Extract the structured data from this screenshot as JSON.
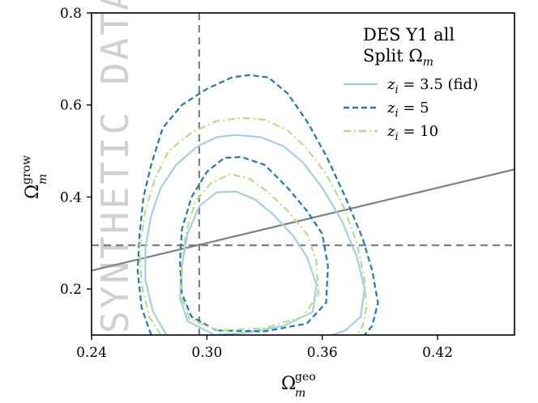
{
  "chart_data": {
    "type": "contour",
    "xlabel": "Ω",
    "xlabel_sub": "m",
    "xlabel_sup": "geo",
    "ylabel": "Ω",
    "ylabel_sub": "m",
    "ylabel_sup": "grow",
    "xlim": [
      0.24,
      0.46
    ],
    "ylim": [
      0.1,
      0.8
    ],
    "xticks": [
      0.24,
      0.3,
      0.36,
      0.42
    ],
    "xtick_labels": [
      "0.24",
      "0.30",
      "0.36",
      "0.42"
    ],
    "yticks": [
      0.2,
      0.4,
      0.6,
      0.8
    ],
    "ytick_labels": [
      "0.2",
      "0.4",
      "0.6",
      "0.8"
    ],
    "watermark": "SYNTHETIC DATA",
    "legend": {
      "title_line1": "DES Y1 all",
      "title_line2": "Split Ω",
      "title_line2_sub": "m",
      "placement": "top-right"
    },
    "reference_lines": [
      {
        "type": "vertical",
        "x": 0.296,
        "style": "dashed",
        "color": "#808080"
      },
      {
        "type": "horizontal",
        "y": 0.295,
        "style": "dashed",
        "color": "#808080"
      },
      {
        "type": "diagonal",
        "x0": 0.24,
        "y0": 0.24,
        "x1": 0.46,
        "y1": 0.46,
        "style": "solid",
        "color": "#808080"
      }
    ],
    "series": [
      {
        "name": "z_i = 3.5 (fid)",
        "label_var": "z",
        "label_sub": "i",
        "label_rest": " = 3.5 (fid)",
        "color": "#a6cee3",
        "style": "solid",
        "contours": [
          [
            [
              0.304,
              0.1
            ],
            [
              0.29,
              0.13
            ],
            [
              0.286,
              0.18
            ],
            [
              0.287,
              0.25
            ],
            [
              0.29,
              0.32
            ],
            [
              0.296,
              0.38
            ],
            [
              0.305,
              0.41
            ],
            [
              0.315,
              0.412
            ],
            [
              0.325,
              0.395
            ],
            [
              0.335,
              0.36
            ],
            [
              0.345,
              0.315
            ],
            [
              0.352,
              0.27
            ],
            [
              0.357,
              0.21
            ],
            [
              0.355,
              0.15
            ],
            [
              0.34,
              0.12
            ],
            [
              0.32,
              0.105
            ],
            [
              0.304,
              0.1
            ]
          ],
          [
            [
              0.279,
              0.1
            ],
            [
              0.272,
              0.15
            ],
            [
              0.268,
              0.22
            ],
            [
              0.268,
              0.29
            ],
            [
              0.271,
              0.36
            ],
            [
              0.276,
              0.42
            ],
            [
              0.284,
              0.47
            ],
            [
              0.295,
              0.51
            ],
            [
              0.305,
              0.53
            ],
            [
              0.315,
              0.535
            ],
            [
              0.328,
              0.53
            ],
            [
              0.34,
              0.51
            ],
            [
              0.35,
              0.475
            ],
            [
              0.36,
              0.42
            ],
            [
              0.37,
              0.35
            ],
            [
              0.378,
              0.27
            ],
            [
              0.382,
              0.2
            ],
            [
              0.38,
              0.14
            ],
            [
              0.372,
              0.11
            ],
            [
              0.365,
              0.1
            ]
          ]
        ]
      },
      {
        "name": "z_i = 5",
        "label_var": "z",
        "label_sub": "i",
        "label_rest": " = 5",
        "color": "#1f78b4",
        "style": "dashed",
        "contours": [
          [
            [
              0.305,
              0.11
            ],
            [
              0.292,
              0.14
            ],
            [
              0.287,
              0.19
            ],
            [
              0.286,
              0.26
            ],
            [
              0.287,
              0.33
            ],
            [
              0.292,
              0.4
            ],
            [
              0.3,
              0.455
            ],
            [
              0.309,
              0.485
            ],
            [
              0.318,
              0.487
            ],
            [
              0.33,
              0.47
            ],
            [
              0.342,
              0.42
            ],
            [
              0.352,
              0.37
            ],
            [
              0.36,
              0.32
            ],
            [
              0.363,
              0.25
            ],
            [
              0.362,
              0.17
            ],
            [
              0.352,
              0.125
            ],
            [
              0.33,
              0.108
            ],
            [
              0.305,
              0.11
            ]
          ],
          [
            [
              0.271,
              0.1
            ],
            [
              0.266,
              0.16
            ],
            [
              0.264,
              0.24
            ],
            [
              0.265,
              0.32
            ],
            [
              0.267,
              0.4
            ],
            [
              0.271,
              0.47
            ],
            [
              0.277,
              0.55
            ],
            [
              0.287,
              0.6
            ],
            [
              0.3,
              0.635
            ],
            [
              0.313,
              0.66
            ],
            [
              0.322,
              0.665
            ],
            [
              0.332,
              0.66
            ],
            [
              0.342,
              0.625
            ],
            [
              0.352,
              0.565
            ],
            [
              0.362,
              0.49
            ],
            [
              0.372,
              0.4
            ],
            [
              0.381,
              0.31
            ],
            [
              0.386,
              0.24
            ],
            [
              0.389,
              0.17
            ],
            [
              0.386,
              0.12
            ],
            [
              0.382,
              0.1
            ]
          ]
        ]
      },
      {
        "name": "z_i = 10",
        "label_var": "z",
        "label_sub": "i",
        "label_rest": " = 10",
        "color": "#b2df8a",
        "style": "dashdot",
        "contours": [
          [
            [
              0.306,
              0.11
            ],
            [
              0.291,
              0.135
            ],
            [
              0.287,
              0.18
            ],
            [
              0.287,
              0.25
            ],
            [
              0.289,
              0.32
            ],
            [
              0.294,
              0.39
            ],
            [
              0.302,
              0.43
            ],
            [
              0.312,
              0.45
            ],
            [
              0.322,
              0.44
            ],
            [
              0.332,
              0.41
            ],
            [
              0.342,
              0.37
            ],
            [
              0.352,
              0.32
            ],
            [
              0.357,
              0.26
            ],
            [
              0.358,
              0.19
            ],
            [
              0.35,
              0.14
            ],
            [
              0.33,
              0.115
            ],
            [
              0.306,
              0.11
            ]
          ],
          [
            [
              0.276,
              0.1
            ],
            [
              0.27,
              0.14
            ],
            [
              0.266,
              0.21
            ],
            [
              0.265,
              0.29
            ],
            [
              0.268,
              0.37
            ],
            [
              0.273,
              0.44
            ],
            [
              0.28,
              0.5
            ],
            [
              0.292,
              0.54
            ],
            [
              0.305,
              0.565
            ],
            [
              0.318,
              0.572
            ],
            [
              0.33,
              0.568
            ],
            [
              0.342,
              0.545
            ],
            [
              0.352,
              0.505
            ],
            [
              0.362,
              0.45
            ],
            [
              0.371,
              0.38
            ],
            [
              0.378,
              0.3
            ],
            [
              0.382,
              0.22
            ],
            [
              0.383,
              0.16
            ],
            [
              0.381,
              0.12
            ],
            [
              0.378,
              0.1
            ]
          ]
        ]
      }
    ]
  }
}
